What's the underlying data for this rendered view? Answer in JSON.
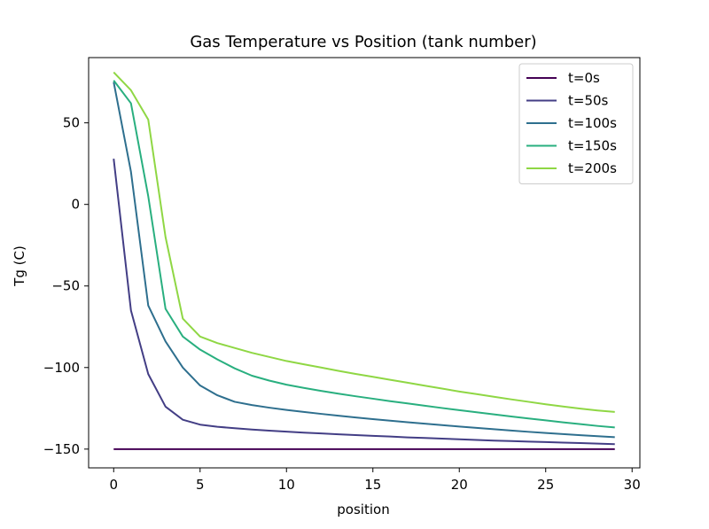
{
  "chart_data": {
    "type": "line",
    "title": "Gas Temperature vs Position (tank number)",
    "xlabel": "position",
    "ylabel": "Tg (C)",
    "xlim": [
      -1.45,
      30.45
    ],
    "ylim": [
      -161.5,
      90.0
    ],
    "xticks": [
      0,
      5,
      10,
      15,
      20,
      25,
      30
    ],
    "yticks": [
      -150,
      -100,
      -50,
      0,
      50
    ],
    "ytick_labels": [
      "−150",
      "−100",
      "−50",
      "0",
      "50"
    ],
    "grid": false,
    "legend_position": "upper right",
    "x": [
      0,
      1,
      2,
      3,
      4,
      5,
      6,
      7,
      8,
      9,
      10,
      11,
      12,
      13,
      14,
      15,
      16,
      17,
      18,
      19,
      20,
      21,
      22,
      23,
      24,
      25,
      26,
      27,
      28,
      29
    ],
    "series": [
      {
        "name": "t=0s",
        "color": "#440154",
        "values": [
          -150,
          -150,
          -150,
          -150,
          -150,
          -150,
          -150,
          -150,
          -150,
          -150,
          -150,
          -150,
          -150,
          -150,
          -150,
          -150,
          -150,
          -150,
          -150,
          -150,
          -150,
          -150,
          -150,
          -150,
          -150,
          -150,
          -150,
          -150,
          -150,
          -150
        ]
      },
      {
        "name": "t=50s",
        "color": "#433e85",
        "values": [
          28,
          -65,
          -104,
          -124,
          -132,
          -135,
          -136.3,
          -137.2,
          -138,
          -138.7,
          -139.3,
          -139.9,
          -140.4,
          -140.9,
          -141.4,
          -141.9,
          -142.3,
          -142.8,
          -143.2,
          -143.6,
          -144,
          -144.4,
          -144.8,
          -145.1,
          -145.4,
          -145.7,
          -146,
          -146.3,
          -146.6,
          -147
        ]
      },
      {
        "name": "t=100s",
        "color": "#2e6f8e",
        "values": [
          75,
          20,
          -62,
          -84,
          -100,
          -111,
          -117,
          -121,
          -123,
          -124.6,
          -126,
          -127.2,
          -128.4,
          -129.5,
          -130.6,
          -131.6,
          -132.6,
          -133.5,
          -134.4,
          -135.3,
          -136.2,
          -137,
          -137.8,
          -138.6,
          -139.4,
          -140.1,
          -140.8,
          -141.5,
          -142.1,
          -142.7
        ]
      },
      {
        "name": "t=150s",
        "color": "#29af7f",
        "values": [
          76,
          62,
          5,
          -64,
          -81,
          -89,
          -95,
          -100.5,
          -105,
          -108,
          -110.5,
          -112.5,
          -114.3,
          -116,
          -117.6,
          -119.1,
          -120.6,
          -122,
          -123.4,
          -124.8,
          -126.1,
          -127.4,
          -128.7,
          -130,
          -131.2,
          -132.4,
          -133.6,
          -134.7,
          -135.8,
          -136.7
        ]
      },
      {
        "name": "t=200s",
        "color": "#8fd744",
        "values": [
          81,
          70,
          52,
          -20,
          -70,
          -81,
          -85,
          -88,
          -91,
          -93.5,
          -96,
          -98,
          -100,
          -102,
          -103.9,
          -105.7,
          -107.5,
          -109.3,
          -111.1,
          -112.9,
          -114.7,
          -116.3,
          -117.9,
          -119.5,
          -121,
          -122.5,
          -123.9,
          -125.2,
          -126.3,
          -127.2
        ]
      }
    ]
  }
}
